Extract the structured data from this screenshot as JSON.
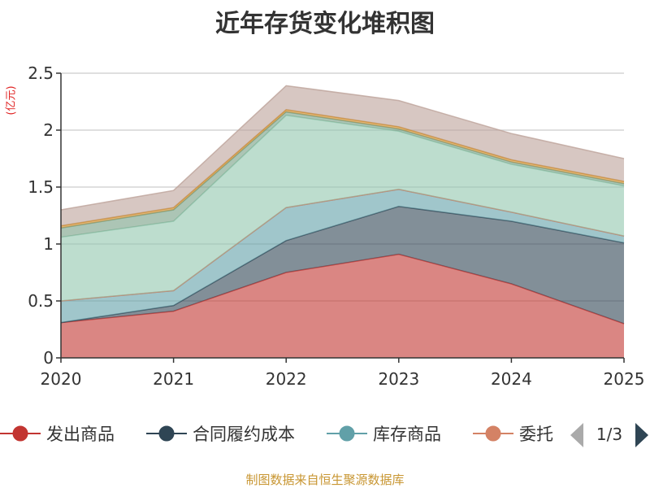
{
  "title": "近年存货变化堆积图",
  "source": "制图数据来自恒生聚源数据库",
  "pager": "1/3",
  "chart_data": {
    "type": "area",
    "stacked": true,
    "ylabel": "(亿元)",
    "x": [
      "2020",
      "2021",
      "2022",
      "2023",
      "2024",
      "2025"
    ],
    "ylim": [
      0,
      2.5
    ],
    "yticks": [
      0,
      0.5,
      1,
      1.5,
      2,
      2.5
    ],
    "ytick_labels": [
      "0",
      "0.5",
      "1",
      "1.5",
      "2",
      "2.5"
    ],
    "grid": true,
    "legend_position": "bottom",
    "series": [
      {
        "name": "发出商品",
        "color": "#c23531",
        "values": [
          0.31,
          0.41,
          0.75,
          0.91,
          0.65,
          0.3
        ]
      },
      {
        "name": "合同履约成本",
        "color": "#2f4554",
        "values": [
          0.0,
          0.05,
          0.28,
          0.42,
          0.55,
          0.71
        ]
      },
      {
        "name": "库存商品",
        "color": "#61a0a8",
        "values": [
          0.19,
          0.13,
          0.29,
          0.15,
          0.08,
          0.06
        ]
      },
      {
        "name": "委托",
        "color": "#d48265",
        "values": [
          0.0,
          0.0,
          0.0,
          0.0,
          0.0,
          0.0
        ]
      },
      {
        "name": "",
        "color": "#91c7ae",
        "values": [
          0.56,
          0.61,
          0.81,
          0.51,
          0.42,
          0.44
        ]
      },
      {
        "name": "",
        "color": "#749f83",
        "values": [
          0.08,
          0.1,
          0.03,
          0.02,
          0.02,
          0.02
        ]
      },
      {
        "name": "",
        "color": "#ca8622",
        "values": [
          0.02,
          0.02,
          0.02,
          0.02,
          0.02,
          0.02
        ]
      },
      {
        "name": "",
        "color": "#bda29a",
        "values": [
          0.14,
          0.15,
          0.21,
          0.23,
          0.23,
          0.2
        ]
      }
    ]
  }
}
